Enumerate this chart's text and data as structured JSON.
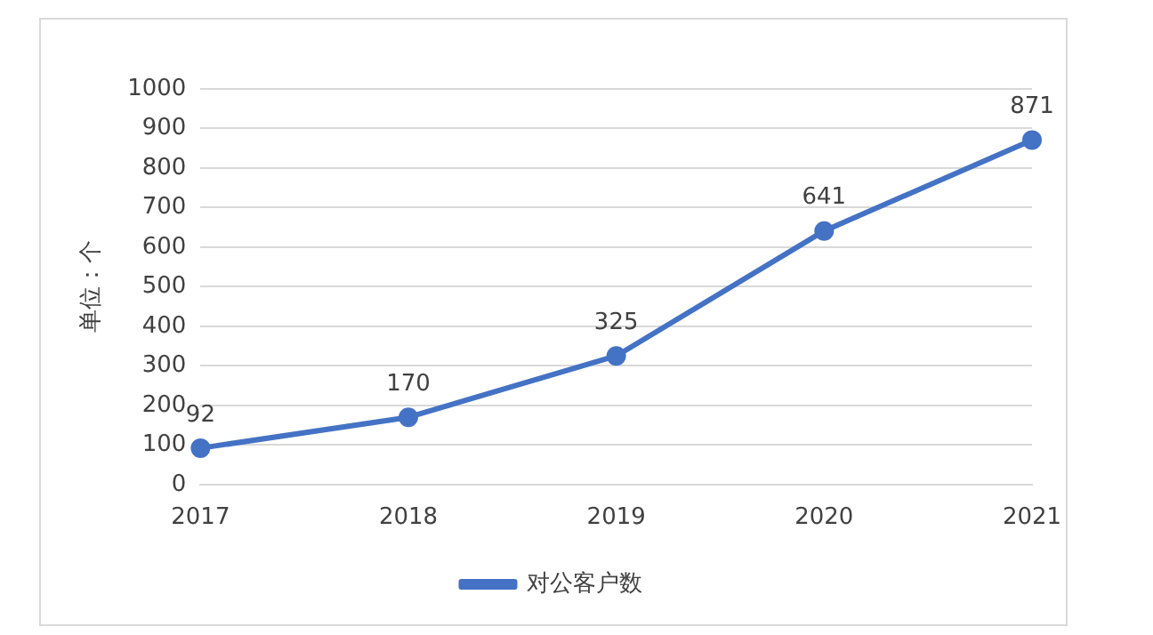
{
  "chart_data": {
    "type": "line",
    "ylabel": "单位：个",
    "categories": [
      "2017",
      "2018",
      "2019",
      "2020",
      "2021"
    ],
    "series": [
      {
        "name": "对公客户数",
        "color": "#4472c4",
        "values": [
          92,
          170,
          325,
          641,
          871
        ]
      }
    ],
    "ylim": [
      0,
      1000
    ],
    "yticks": [
      0,
      100,
      200,
      300,
      400,
      500,
      600,
      700,
      800,
      900,
      1000
    ],
    "grid": "y",
    "legend": "bottom",
    "marker": "circle",
    "line_style": "solid",
    "data_labels": true
  }
}
